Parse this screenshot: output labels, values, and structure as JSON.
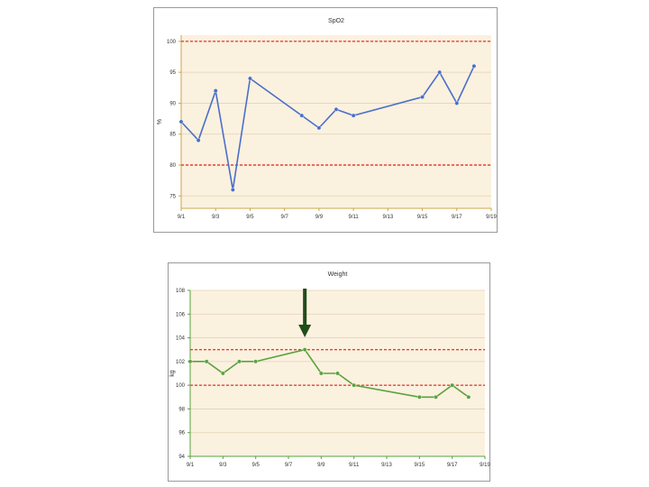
{
  "chart_data": [
    {
      "type": "line",
      "title": "SpO2",
      "ylabel": "%",
      "xlabel": "",
      "ylim": [
        73,
        101
      ],
      "xlim": [
        "9/1",
        "9/19"
      ],
      "y_ticks": [
        75,
        80,
        85,
        90,
        95,
        100
      ],
      "x_ticks": [
        "9/1",
        "9/3",
        "9/5",
        "9/7",
        "9/9",
        "9/11",
        "9/13",
        "9/15",
        "9/17",
        "9/19"
      ],
      "reference_lines": [
        {
          "value": 100,
          "color": "#e8413a",
          "style": "dashed"
        },
        {
          "value": 80,
          "color": "#e8413a",
          "style": "dashed"
        }
      ],
      "grid": true,
      "background": "#fbf1df",
      "series": [
        {
          "color": "#4a6fc9",
          "x": [
            "9/1",
            "9/2",
            "9/3",
            "9/4",
            "9/5",
            "9/8",
            "9/9",
            "9/10",
            "9/11",
            "9/15",
            "9/16",
            "9/17",
            "9/18"
          ],
          "values": [
            87,
            84,
            92,
            76,
            94,
            88,
            86,
            89,
            88,
            91,
            95,
            90,
            96
          ]
        }
      ]
    },
    {
      "type": "line",
      "title": "Weight",
      "ylabel": "kg",
      "xlabel": "",
      "ylim": [
        94,
        108
      ],
      "xlim": [
        "9/1",
        "9/19"
      ],
      "y_ticks": [
        94,
        96,
        98,
        100,
        102,
        104,
        106,
        108
      ],
      "x_ticks": [
        "9/1",
        "9/3",
        "9/5",
        "9/7",
        "9/9",
        "9/11",
        "9/13",
        "9/15",
        "9/17",
        "9/19"
      ],
      "reference_lines": [
        {
          "value": 103,
          "color": "#e8413a",
          "style": "dashed"
        },
        {
          "value": 100,
          "color": "#e8413a",
          "style": "dashed"
        }
      ],
      "grid": true,
      "background": "#fbf1df",
      "series": [
        {
          "color": "#5aa23f",
          "x": [
            "9/1",
            "9/2",
            "9/3",
            "9/4",
            "9/5",
            "9/8",
            "9/9",
            "9/10",
            "9/11",
            "9/15",
            "9/16",
            "9/17",
            "9/18"
          ],
          "values": [
            102,
            102,
            101,
            102,
            102,
            103,
            101,
            101,
            100,
            99,
            99,
            100,
            99
          ]
        }
      ],
      "annotation": {
        "type": "arrow",
        "x": "9/8",
        "color": "#1f4d1a"
      }
    }
  ]
}
